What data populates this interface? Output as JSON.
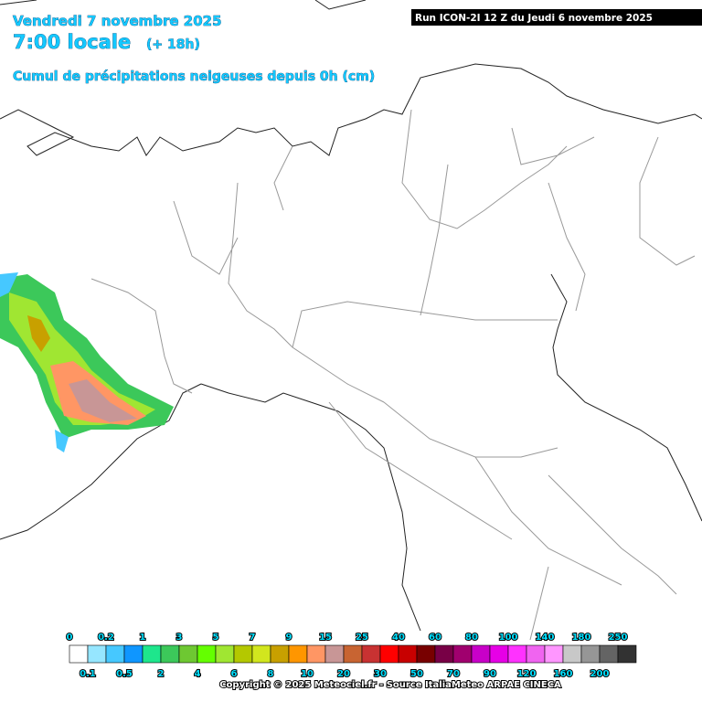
{
  "header": {
    "date": "Vendredi 7 novembre 2025",
    "time": "7:00 locale",
    "lead": "(+ 18h)",
    "subtitle": "Cumul de précipitations neigeuses depuis 0h (cm)",
    "run": "Run ICON-2I 12 Z du Jeudi 6 novembre 2025"
  },
  "legend": {
    "ticks": [
      0,
      0.1,
      0.2,
      0.5,
      1,
      2,
      3,
      4,
      5,
      6,
      7,
      8,
      9,
      10,
      15,
      20,
      25,
      30,
      40,
      50,
      60,
      70,
      80,
      90,
      100,
      120,
      140,
      160,
      180,
      200,
      250
    ],
    "colors": [
      "#ffffff",
      "#96e6ff",
      "#46c8ff",
      "#0f96ff",
      "#1ee68c",
      "#3cc85a",
      "#6ec832",
      "#64ff00",
      "#a0e632",
      "#b4c800",
      "#d2e61e",
      "#c8a000",
      "#ff9600",
      "#ff9664",
      "#c89696",
      "#c86432",
      "#c83232",
      "#ff0000",
      "#c80000",
      "#780000",
      "#780046",
      "#a0006e",
      "#c800c8",
      "#e600e6",
      "#ff32ff",
      "#f064f0",
      "#ff96ff",
      "#c8c8c8",
      "#969696",
      "#646464",
      "#323232"
    ]
  },
  "footer": "Copyright © 2025 Meteociel.fr - Source ItaliaMeteo ARPAE CINECA"
}
